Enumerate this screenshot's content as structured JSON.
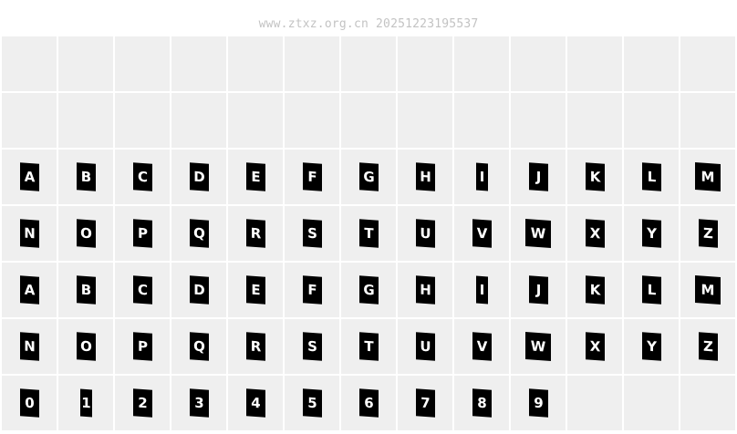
{
  "watermark": "www.ztxz.org.cn 20251223195537",
  "rows": [
    [
      "",
      "",
      "",
      "",
      "",
      "",
      "",
      "",
      "",
      "",
      "",
      "",
      ""
    ],
    [
      "",
      "",
      "",
      "",
      "",
      "",
      "",
      "",
      "",
      "",
      "",
      "",
      ""
    ],
    [
      "A",
      "B",
      "C",
      "D",
      "E",
      "F",
      "G",
      "H",
      "I",
      "J",
      "K",
      "L",
      "M"
    ],
    [
      "N",
      "O",
      "P",
      "Q",
      "R",
      "S",
      "T",
      "U",
      "V",
      "W",
      "X",
      "Y",
      "Z"
    ],
    [
      "a",
      "b",
      "c",
      "d",
      "e",
      "f",
      "g",
      "h",
      "i",
      "j",
      "k",
      "l",
      "m"
    ],
    [
      "n",
      "o",
      "p",
      "q",
      "r",
      "s",
      "t",
      "u",
      "v",
      "w",
      "x",
      "y",
      "z"
    ],
    [
      "0",
      "1",
      "2",
      "3",
      "4",
      "5",
      "6",
      "7",
      "8",
      "9",
      "",
      "",
      ""
    ]
  ]
}
